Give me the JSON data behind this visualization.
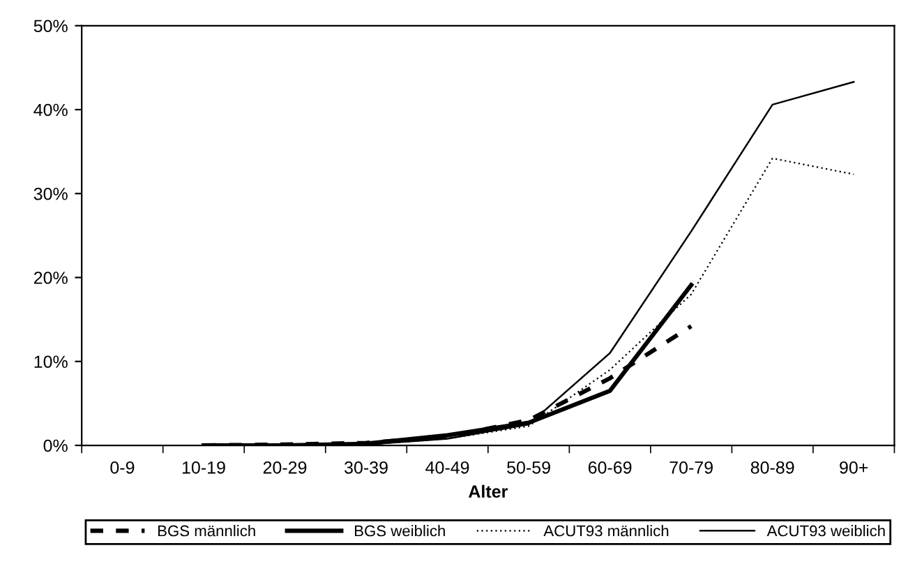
{
  "chart_data": {
    "type": "line",
    "xlabel": "Alter",
    "categories": [
      "0-9",
      "10-19",
      "20-29",
      "30-39",
      "40-49",
      "50-59",
      "60-69",
      "70-79",
      "80-89",
      "90+"
    ],
    "ylim": [
      0,
      50
    ],
    "yticks": [
      {
        "value": 0,
        "label": "0%"
      },
      {
        "value": 10,
        "label": "10%"
      },
      {
        "value": 20,
        "label": "20%"
      },
      {
        "value": 30,
        "label": "30%"
      },
      {
        "value": 40,
        "label": "40%"
      },
      {
        "value": 50,
        "label": "50%"
      }
    ],
    "grid": false,
    "legend": "bottom",
    "marker": "none",
    "series": [
      {
        "name": "BGS männlich",
        "color": "#000000",
        "line_style": "dashed",
        "values": [
          null,
          0,
          0.1,
          0.3,
          1.0,
          3.0,
          8.0,
          14.2,
          null,
          null
        ]
      },
      {
        "name": "BGS weiblich",
        "color": "#000000",
        "line_style": "solid",
        "values": [
          null,
          0,
          0,
          0.2,
          1.2,
          2.7,
          6.5,
          19.1,
          null,
          null
        ]
      },
      {
        "name": "ACUT93 männlich",
        "color": "#000000",
        "line_style": "dotted",
        "values": [
          null,
          0,
          0,
          0.1,
          0.8,
          2.3,
          9.0,
          18.0,
          34.2,
          32.3
        ]
      },
      {
        "name": "ACUT93 weiblich",
        "color": "#000000",
        "line_style": "solid",
        "values": [
          null,
          0,
          0,
          0.1,
          0.8,
          2.5,
          11.0,
          25.5,
          40.6,
          43.3
        ]
      }
    ]
  }
}
